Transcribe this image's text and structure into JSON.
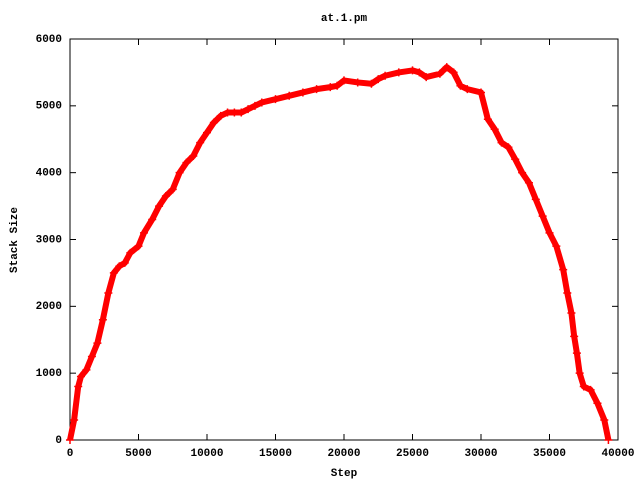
{
  "chart_data": {
    "type": "line",
    "title": "at.1.pm",
    "x_label": "Step",
    "y_label": "Stack Size",
    "x": [
      0,
      300,
      600,
      800,
      1200,
      1600,
      2000,
      2400,
      2800,
      3200,
      3600,
      4000,
      4400,
      5000,
      5400,
      6000,
      6500,
      7000,
      7500,
      8000,
      8500,
      9000,
      9500,
      10000,
      10500,
      11000,
      11500,
      12000,
      12500,
      13000,
      13500,
      14000,
      15000,
      16000,
      17000,
      18000,
      19000,
      19500,
      20000,
      21000,
      22000,
      22500,
      23000,
      24000,
      25000,
      25500,
      26000,
      27000,
      27500,
      28000,
      28500,
      29000,
      30000,
      30500,
      31000,
      31500,
      32000,
      32500,
      33000,
      33500,
      34000,
      34500,
      35000,
      35500,
      36000,
      36300,
      36600,
      36800,
      37000,
      37200,
      37500,
      38000,
      38500,
      39000,
      39300
    ],
    "series": [
      {
        "name": "at.1.pm",
        "color": "#ff0000",
        "values": [
          0,
          300,
          800,
          950,
          1050,
          1250,
          1450,
          1800,
          2200,
          2500,
          2600,
          2650,
          2800,
          2900,
          3100,
          3300,
          3500,
          3650,
          3750,
          4000,
          4150,
          4250,
          4450,
          4600,
          4750,
          4850,
          4900,
          4900,
          4900,
          4950,
          5000,
          5050,
          5100,
          5150,
          5200,
          5250,
          5280,
          5300,
          5380,
          5350,
          5330,
          5400,
          5450,
          5500,
          5530,
          5500,
          5430,
          5480,
          5580,
          5500,
          5300,
          5250,
          5200,
          4800,
          4650,
          4450,
          4380,
          4200,
          4000,
          3850,
          3600,
          3350,
          3100,
          2900,
          2550,
          2200,
          1900,
          1550,
          1300,
          1000,
          800,
          750,
          550,
          300,
          0
        ]
      }
    ],
    "xlim": [
      0,
      40000
    ],
    "ylim": [
      0,
      6000
    ],
    "xticks": [
      0,
      5000,
      10000,
      15000,
      20000,
      25000,
      30000,
      35000,
      40000
    ],
    "yticks": [
      0,
      1000,
      2000,
      3000,
      4000,
      5000,
      6000
    ]
  }
}
